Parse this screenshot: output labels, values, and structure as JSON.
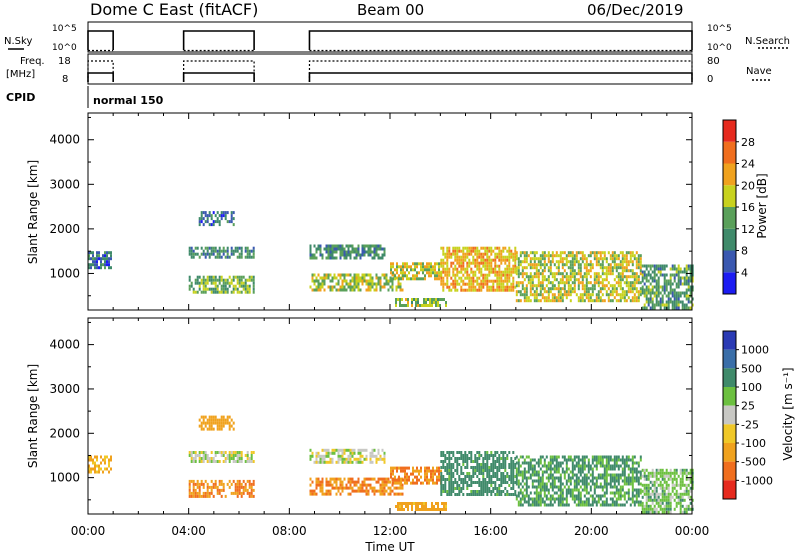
{
  "header": {
    "station": "Dome C East (fitACF)",
    "beam": "Beam 00",
    "date": "06/Dec/2019"
  },
  "top_panels": {
    "nsky_label": "N.Sky",
    "nsky_ticks": [
      "10^5",
      "10^0"
    ],
    "nsearch_label": "N.Search",
    "nsearch_ticks": [
      "10^5",
      "10^0"
    ],
    "freq_label_line1": "Freq.",
    "freq_label_line2": "[MHz]",
    "freq_ticks": [
      "18",
      "8"
    ],
    "nave_label": "Nave",
    "nave_ticks": [
      "80",
      "0"
    ],
    "cpid_label": "CPID",
    "cpid_value": "normal 150"
  },
  "x_axis": {
    "label": "Time UT",
    "ticks": [
      "00:00",
      "04:00",
      "08:00",
      "12:00",
      "16:00",
      "20:00",
      "00:00"
    ]
  },
  "power_panel": {
    "ylabel": "Slant Range [km]",
    "yticks": [
      "1000",
      "2000",
      "3000",
      "4000"
    ],
    "cbar_label": "Power [dB]",
    "cbar_ticks": [
      "4",
      "8",
      "12",
      "16",
      "20",
      "24",
      "28"
    ],
    "cbar_colors": [
      "#1c1cf2",
      "#3a58b0",
      "#3f8a6a",
      "#5aa05a",
      "#c8d21e",
      "#f0a21e",
      "#f06e1e",
      "#e62a1e"
    ]
  },
  "velocity_panel": {
    "ylabel": "Slant Range [km]",
    "yticks": [
      "1000",
      "2000",
      "3000",
      "4000"
    ],
    "cbar_label": "Velocity [m s⁻¹]",
    "cbar_ticks": [
      "1000",
      "500",
      "100",
      "25",
      "-25",
      "-100",
      "-500",
      "-1000"
    ],
    "cbar_colors": [
      "#2a3ab4",
      "#3a6ea8",
      "#3f8a6a",
      "#6cc040",
      "#c8c8c4",
      "#f0c828",
      "#f0a21e",
      "#f06e1e",
      "#e62a1e"
    ]
  },
  "chart_data": [
    {
      "type": "line",
      "name": "N.Sky / N.Search",
      "x_units": "hours UT",
      "y_scale": "log",
      "ylim": [
        1,
        100000
      ],
      "segments": [
        [
          0.0,
          1.0
        ],
        [
          3.8,
          6.6
        ],
        [
          8.8,
          24.0
        ]
      ],
      "nsky_level": 50000,
      "nsearch_level": 1
    },
    {
      "type": "line",
      "name": "Freq / Nave",
      "x_units": "hours UT",
      "freq_ylim": [
        8,
        18
      ],
      "nave_ylim": [
        0,
        80
      ],
      "segments": [
        [
          0.0,
          1.0
        ],
        [
          3.8,
          6.6
        ],
        [
          8.8,
          24.0
        ]
      ],
      "freq_level_mhz": 10.5,
      "nave_level": 70
    },
    {
      "type": "heatmap",
      "title": "Power",
      "x_units": "hours UT",
      "y_units": "km",
      "xlim": [
        0,
        24
      ],
      "ylim": [
        180,
        4600
      ],
      "cbar_range": [
        0,
        30
      ],
      "blobs": [
        {
          "t0": 0.0,
          "t1": 0.9,
          "r0": 1150,
          "r1": 1500,
          "level": 8
        },
        {
          "t0": 4.0,
          "t1": 6.6,
          "r0": 1350,
          "r1": 1600,
          "level": 10
        },
        {
          "t0": 4.0,
          "t1": 6.6,
          "r0": 600,
          "r1": 950,
          "level": 14
        },
        {
          "t0": 4.4,
          "t1": 5.8,
          "r0": 2100,
          "r1": 2400,
          "level": 8
        },
        {
          "t0": 8.8,
          "t1": 11.8,
          "r0": 1350,
          "r1": 1650,
          "level": 11
        },
        {
          "t0": 8.8,
          "t1": 12.5,
          "r0": 600,
          "r1": 1000,
          "level": 17
        },
        {
          "t0": 12.0,
          "t1": 14.0,
          "r0": 850,
          "r1": 1250,
          "level": 18
        },
        {
          "t0": 12.2,
          "t1": 14.2,
          "r0": 250,
          "r1": 450,
          "level": 16
        },
        {
          "t0": 14.0,
          "t1": 17.0,
          "r0": 600,
          "r1": 1600,
          "level": 21
        },
        {
          "t0": 17.0,
          "t1": 22.0,
          "r0": 400,
          "r1": 1500,
          "level": 18
        },
        {
          "t0": 22.0,
          "t1": 24.0,
          "r0": 200,
          "r1": 1200,
          "level": 12
        }
      ]
    },
    {
      "type": "heatmap",
      "title": "Velocity",
      "x_units": "hours UT",
      "y_units": "km",
      "xlim": [
        0,
        24
      ],
      "ylim": [
        180,
        4600
      ],
      "blobs": [
        {
          "t0": 0.0,
          "t1": 0.9,
          "r0": 1150,
          "r1": 1500,
          "velocity": -100
        },
        {
          "t0": 4.0,
          "t1": 6.6,
          "r0": 1350,
          "r1": 1600,
          "velocity": 0
        },
        {
          "t0": 4.0,
          "t1": 6.6,
          "r0": 600,
          "r1": 950,
          "velocity": -500
        },
        {
          "t0": 4.4,
          "t1": 5.8,
          "r0": 2100,
          "r1": 2400,
          "velocity": -300
        },
        {
          "t0": 8.8,
          "t1": 11.8,
          "r0": 1350,
          "r1": 1650,
          "velocity": 0
        },
        {
          "t0": 8.8,
          "t1": 12.5,
          "r0": 600,
          "r1": 1000,
          "velocity": -500
        },
        {
          "t0": 12.0,
          "t1": 14.0,
          "r0": 850,
          "r1": 1250,
          "velocity": -500
        },
        {
          "t0": 12.2,
          "t1": 14.2,
          "r0": 250,
          "r1": 450,
          "velocity": -150
        },
        {
          "t0": 14.0,
          "t1": 17.0,
          "r0": 600,
          "r1": 1600,
          "velocity": 150
        },
        {
          "t0": 17.0,
          "t1": 22.0,
          "r0": 400,
          "r1": 1500,
          "velocity": 120
        },
        {
          "t0": 22.0,
          "t1": 24.0,
          "r0": 200,
          "r1": 1200,
          "velocity": 60
        }
      ]
    }
  ]
}
